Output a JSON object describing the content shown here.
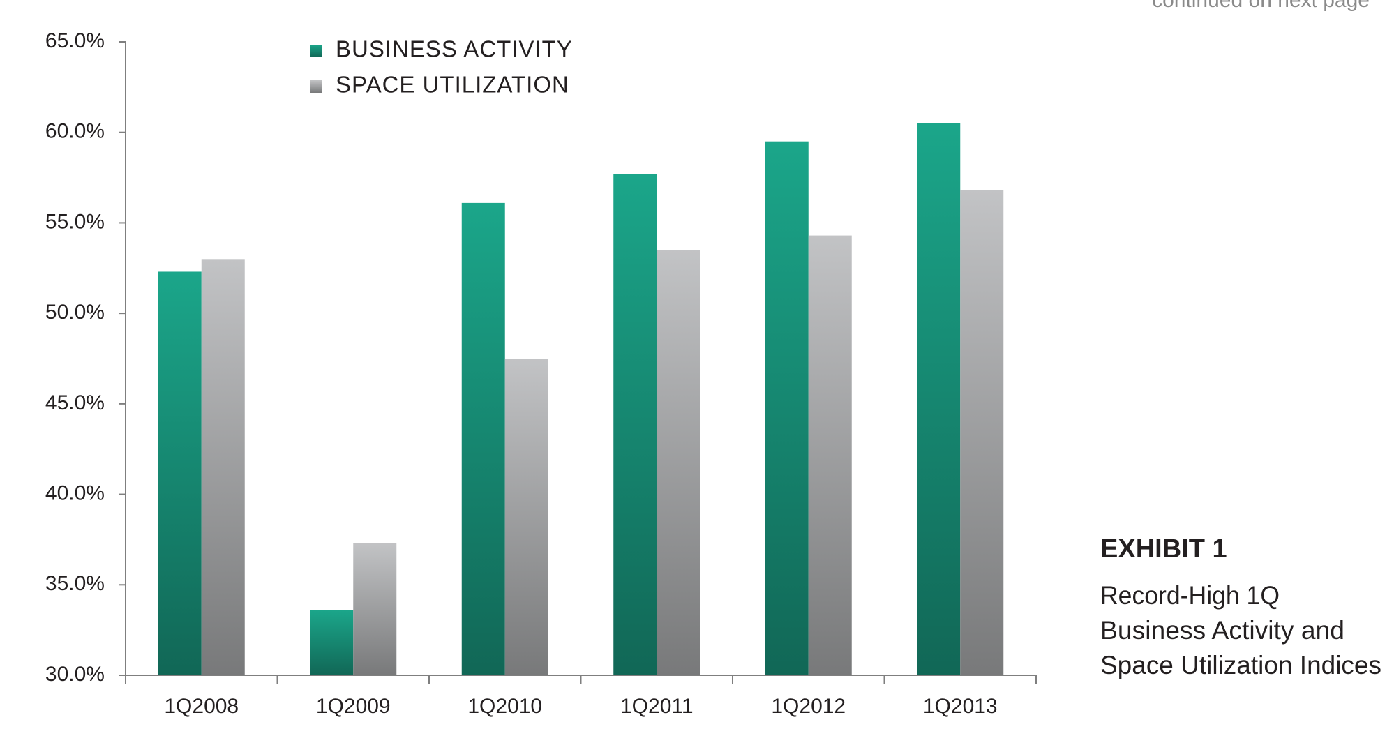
{
  "chart_data": {
    "type": "bar",
    "note": "continued on next page",
    "exhibit_label": "EXHIBIT 1",
    "subtitle": [
      "Record-High 1Q",
      "Business Activity and",
      "Space Utilization Indices"
    ],
    "categories": [
      "1Q2008",
      "1Q2009",
      "1Q2010",
      "1Q2011",
      "1Q2012",
      "1Q2013"
    ],
    "series": [
      {
        "name": "BUSINESS ACTIVITY",
        "color": "#1ba68a",
        "values": [
          52.3,
          33.6,
          56.1,
          57.7,
          59.5,
          60.5
        ]
      },
      {
        "name": "SPACE UTILIZATION",
        "color": "#c2c3c5",
        "values": [
          53.0,
          37.3,
          47.5,
          53.5,
          54.3,
          56.8
        ]
      }
    ],
    "ylim": [
      30,
      65
    ],
    "yticks": [
      {
        "value": 30,
        "label": "30.0%"
      },
      {
        "value": 35,
        "label": "35.0%"
      },
      {
        "value": 40,
        "label": "40.0%"
      },
      {
        "value": 45,
        "label": "45.0%"
      },
      {
        "value": 50,
        "label": "50.0%"
      },
      {
        "value": 55,
        "label": "55.0%"
      },
      {
        "value": 60,
        "label": "60.0%"
      },
      {
        "value": 65,
        "label": "65.0%"
      }
    ],
    "grid": false,
    "legend": "top-left"
  }
}
